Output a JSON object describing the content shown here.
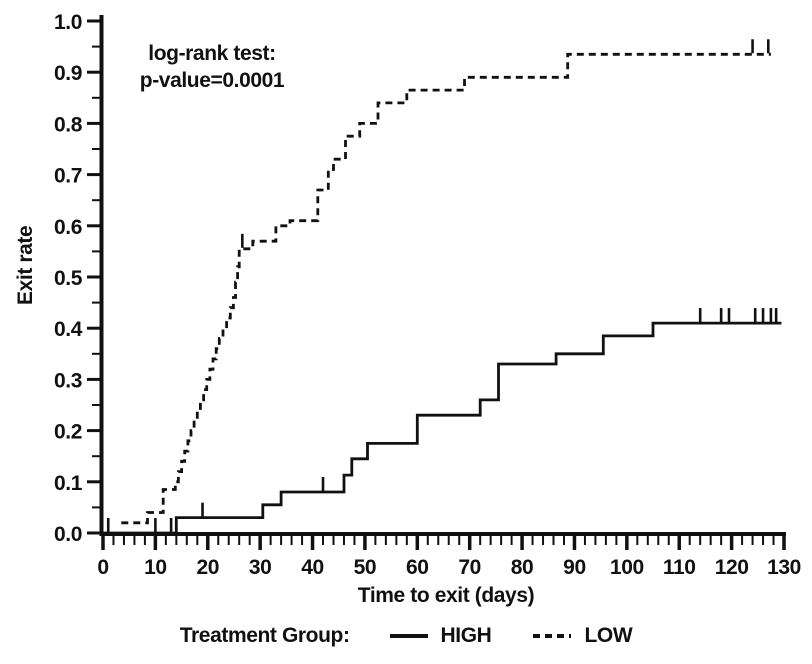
{
  "annotation": {
    "line1": "log-rank test:",
    "line2": "p-value=0.0001"
  },
  "y_axis": {
    "label": "Exit rate"
  },
  "x_axis": {
    "label": "Time to exit (days)"
  },
  "legend": {
    "label": "Treatment Group:",
    "high": "HIGH",
    "low": "LOW"
  },
  "chart_data": {
    "type": "line",
    "subtype": "kaplan-meier-step-cumulative",
    "title": "",
    "xlabel": "Time to exit (days)",
    "ylabel": "Exit rate",
    "xlim": [
      0,
      130
    ],
    "ylim": [
      0.0,
      1.0
    ],
    "grid": false,
    "legend_label": "Treatment Group:",
    "legend_position": "bottom-center",
    "annotation": "log-rank test: p-value=0.0001",
    "x_major_ticks": [
      0,
      10,
      20,
      30,
      40,
      50,
      60,
      70,
      80,
      90,
      100,
      110,
      120,
      130
    ],
    "x_tick_labels": [
      "0",
      "10",
      "20",
      "30",
      "40",
      "50",
      "60",
      "70",
      "80",
      "90",
      "100",
      "110",
      "120",
      "130"
    ],
    "x_minor_step": 2,
    "y_major_ticks": [
      0.0,
      0.1,
      0.2,
      0.3,
      0.4,
      0.5,
      0.6,
      0.7,
      0.8,
      0.9,
      1.0
    ],
    "y_tick_labels": [
      "0.0",
      "0.1",
      "0.2",
      "0.3",
      "0.4",
      "0.5",
      "0.6",
      "0.7",
      "0.8",
      "0.9",
      "1.0"
    ],
    "y_minor_step": 0.05,
    "series": [
      {
        "name": "HIGH",
        "line_style": "solid",
        "color": "#111111",
        "steps": [
          [
            0,
            0
          ],
          [
            14,
            0.03
          ],
          [
            30.5,
            0.055
          ],
          [
            34,
            0.08
          ],
          [
            46,
            0.113
          ],
          [
            47.5,
            0.145
          ],
          [
            50.5,
            0.175
          ],
          [
            60,
            0.23
          ],
          [
            72,
            0.26
          ],
          [
            75.5,
            0.33
          ],
          [
            86.5,
            0.35
          ],
          [
            95.5,
            0.385
          ],
          [
            105,
            0.41
          ]
        ],
        "end_x": 129.5,
        "censor_marks": [
          [
            1,
            0
          ],
          [
            10,
            0
          ],
          [
            13,
            0
          ],
          [
            19,
            0.03
          ],
          [
            42,
            0.08
          ],
          [
            114,
            0.41
          ],
          [
            118,
            0.41
          ],
          [
            119.5,
            0.41
          ],
          [
            124.5,
            0.41
          ],
          [
            126,
            0.41
          ],
          [
            127.5,
            0.41
          ],
          [
            128.5,
            0.41
          ]
        ]
      },
      {
        "name": "LOW",
        "line_style": "dashed",
        "color": "#111111",
        "steps": [
          [
            3.5,
            0.02
          ],
          [
            8.5,
            0.04
          ],
          [
            11.5,
            0.085
          ],
          [
            13.8,
            0.1
          ],
          [
            14.4,
            0.12
          ],
          [
            15,
            0.14
          ],
          [
            15.6,
            0.16
          ],
          [
            16.2,
            0.18
          ],
          [
            16.8,
            0.2
          ],
          [
            17.4,
            0.22
          ],
          [
            18,
            0.24
          ],
          [
            18.6,
            0.26
          ],
          [
            19.2,
            0.28
          ],
          [
            19.8,
            0.3
          ],
          [
            20.4,
            0.32
          ],
          [
            21,
            0.34
          ],
          [
            21.6,
            0.36
          ],
          [
            22.2,
            0.38
          ],
          [
            22.9,
            0.4
          ],
          [
            23.6,
            0.42
          ],
          [
            24.3,
            0.44
          ],
          [
            24.9,
            0.46
          ],
          [
            25.3,
            0.49
          ],
          [
            25.7,
            0.52
          ],
          [
            26,
            0.555
          ],
          [
            28.6,
            0.57
          ],
          [
            33,
            0.6
          ],
          [
            35.7,
            0.61
          ],
          [
            41,
            0.67
          ],
          [
            43,
            0.71
          ],
          [
            44,
            0.73
          ],
          [
            46.3,
            0.775
          ],
          [
            49,
            0.8
          ],
          [
            52.5,
            0.84
          ],
          [
            58,
            0.865
          ],
          [
            69,
            0.89
          ],
          [
            88.7,
            0.935
          ]
        ],
        "end_x": 127.5,
        "censor_marks": [
          [
            26.6,
            0.555
          ],
          [
            124,
            0.935
          ],
          [
            127,
            0.935
          ]
        ]
      }
    ]
  }
}
